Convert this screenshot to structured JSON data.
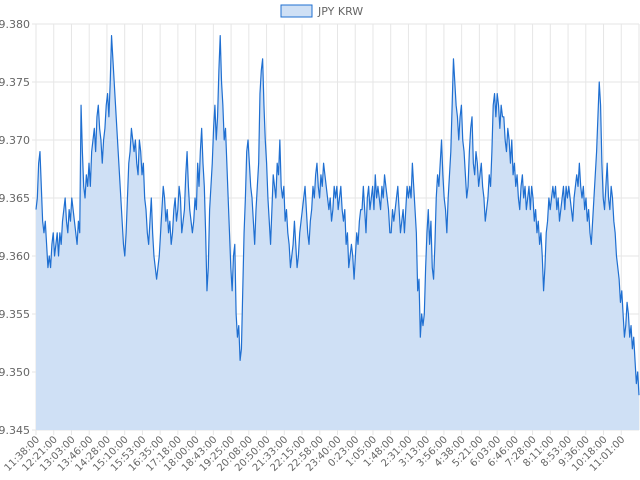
{
  "chart_data": {
    "type": "area",
    "legend": {
      "position": "top",
      "label": "JPY KRW"
    },
    "colors": {
      "line": "#1f6fd1",
      "fill": "#cfe0f5",
      "grid": "#e6e6e6",
      "text": "#666666"
    },
    "grid": true,
    "ylim": [
      9.345,
      9.38
    ],
    "y_ticks": [
      "9.345",
      "9.350",
      "9.355",
      "9.360",
      "9.365",
      "9.370",
      "9.375",
      "9.380"
    ],
    "x_ticks": [
      "11:38:00",
      "12:21:00",
      "13:03:00",
      "13:46:00",
      "14:28:00",
      "15:10:00",
      "15:53:00",
      "16:35:00",
      "17:18:00",
      "18:00:00",
      "18:43:00",
      "19:25:00",
      "20:08:00",
      "20:50:00",
      "21:33:00",
      "22:15:00",
      "22:58:00",
      "23:40:00",
      "0:23:00",
      "1:05:00",
      "1:48:00",
      "2:31:00",
      "3:13:00",
      "3:56:00",
      "4:38:00",
      "5:21:00",
      "6:03:00",
      "6:46:00",
      "7:28:00",
      "8:11:00",
      "8:53:00",
      "9:36:00",
      "10:18:00",
      "11:01:00"
    ],
    "series": [
      {
        "name": "JPY KRW",
        "x_range": [
          "11:38:00",
          "11:30:00"
        ],
        "values": [
          9.364,
          9.365,
          9.368,
          9.369,
          9.366,
          9.363,
          9.362,
          9.363,
          9.361,
          9.359,
          9.36,
          9.359,
          9.361,
          9.362,
          9.36,
          9.361,
          9.362,
          9.36,
          9.362,
          9.361,
          9.363,
          9.364,
          9.365,
          9.363,
          9.362,
          9.364,
          9.363,
          9.365,
          9.364,
          9.363,
          9.362,
          9.361,
          9.363,
          9.362,
          9.373,
          9.369,
          9.366,
          9.365,
          9.367,
          9.366,
          9.368,
          9.366,
          9.369,
          9.37,
          9.371,
          9.369,
          9.372,
          9.373,
          9.371,
          9.37,
          9.368,
          9.37,
          9.371,
          9.373,
          9.374,
          9.372,
          9.375,
          9.379,
          9.377,
          9.375,
          9.373,
          9.371,
          9.369,
          9.367,
          9.365,
          9.363,
          9.361,
          9.36,
          9.362,
          9.365,
          9.368,
          9.369,
          9.371,
          9.37,
          9.369,
          9.37,
          9.368,
          9.367,
          9.37,
          9.369,
          9.367,
          9.368,
          9.365,
          9.364,
          9.362,
          9.361,
          9.363,
          9.365,
          9.362,
          9.36,
          9.359,
          9.358,
          9.359,
          9.36,
          9.362,
          9.364,
          9.366,
          9.365,
          9.363,
          9.364,
          9.362,
          9.363,
          9.361,
          9.362,
          9.364,
          9.365,
          9.363,
          9.364,
          9.366,
          9.365,
          9.362,
          9.363,
          9.364,
          9.367,
          9.369,
          9.366,
          9.364,
          9.363,
          9.362,
          9.363,
          9.365,
          9.364,
          9.368,
          9.366,
          9.369,
          9.371,
          9.368,
          9.366,
          9.362,
          9.357,
          9.359,
          9.364,
          9.366,
          9.368,
          9.371,
          9.373,
          9.37,
          9.372,
          9.376,
          9.379,
          9.375,
          9.373,
          9.37,
          9.371,
          9.368,
          9.365,
          9.362,
          9.359,
          9.357,
          9.36,
          9.361,
          9.355,
          9.353,
          9.354,
          9.351,
          9.352,
          9.357,
          9.362,
          9.365,
          9.369,
          9.37,
          9.368,
          9.366,
          9.365,
          9.363,
          9.361,
          9.364,
          9.366,
          9.368,
          9.374,
          9.376,
          9.377,
          9.373,
          9.37,
          9.368,
          9.365,
          9.363,
          9.361,
          9.364,
          9.367,
          9.366,
          9.365,
          9.368,
          9.367,
          9.37,
          9.366,
          9.365,
          9.366,
          9.363,
          9.364,
          9.362,
          9.361,
          9.359,
          9.36,
          9.361,
          9.363,
          9.361,
          9.359,
          9.36,
          9.362,
          9.363,
          9.364,
          9.365,
          9.366,
          9.364,
          9.362,
          9.361,
          9.363,
          9.364,
          9.366,
          9.365,
          9.367,
          9.368,
          9.366,
          9.365,
          9.367,
          9.366,
          9.368,
          9.367,
          9.366,
          9.365,
          9.364,
          9.365,
          9.363,
          9.364,
          9.366,
          9.365,
          9.366,
          9.364,
          9.365,
          9.366,
          9.364,
          9.363,
          9.364,
          9.361,
          9.362,
          9.359,
          9.36,
          9.361,
          9.36,
          9.358,
          9.36,
          9.362,
          9.361,
          9.363,
          9.364,
          9.364,
          9.366,
          9.364,
          9.362,
          9.365,
          9.366,
          9.364,
          9.365,
          9.366,
          9.364,
          9.367,
          9.365,
          9.366,
          9.365,
          9.364,
          9.366,
          9.365,
          9.367,
          9.366,
          9.365,
          9.364,
          9.362,
          9.362,
          9.364,
          9.363,
          9.364,
          9.365,
          9.366,
          9.364,
          9.362,
          9.363,
          9.364,
          9.362,
          9.364,
          9.366,
          9.365,
          9.366,
          9.365,
          9.368,
          9.366,
          9.364,
          9.362,
          9.357,
          9.358,
          9.353,
          9.355,
          9.354,
          9.355,
          9.359,
          9.362,
          9.364,
          9.361,
          9.363,
          9.359,
          9.358,
          9.361,
          9.365,
          9.367,
          9.366,
          9.368,
          9.37,
          9.367,
          9.365,
          9.364,
          9.362,
          9.365,
          9.367,
          9.369,
          9.373,
          9.377,
          9.375,
          9.373,
          9.372,
          9.37,
          9.372,
          9.373,
          9.37,
          9.369,
          9.367,
          9.365,
          9.366,
          9.369,
          9.371,
          9.372,
          9.368,
          9.367,
          9.369,
          9.368,
          9.366,
          9.367,
          9.368,
          9.366,
          9.365,
          9.363,
          9.364,
          9.365,
          9.367,
          9.366,
          9.369,
          9.373,
          9.374,
          9.372,
          9.374,
          9.373,
          9.371,
          9.373,
          9.372,
          9.372,
          9.37,
          9.369,
          9.371,
          9.37,
          9.368,
          9.37,
          9.367,
          9.368,
          9.366,
          9.367,
          9.365,
          9.364,
          9.366,
          9.367,
          9.365,
          9.366,
          9.364,
          9.365,
          9.366,
          9.364,
          9.366,
          9.365,
          9.363,
          9.364,
          9.362,
          9.363,
          9.361,
          9.362,
          9.36,
          9.357,
          9.359,
          9.362,
          9.363,
          9.365,
          9.364,
          9.365,
          9.366,
          9.365,
          9.366,
          9.364,
          9.365,
          9.363,
          9.364,
          9.365,
          9.366,
          9.364,
          9.366,
          9.365,
          9.366,
          9.365,
          9.364,
          9.363,
          9.365,
          9.366,
          9.367,
          9.366,
          9.368,
          9.366,
          9.365,
          9.366,
          9.364,
          9.365,
          9.363,
          9.364,
          9.362,
          9.361,
          9.363,
          9.365,
          9.367,
          9.369,
          9.372,
          9.375,
          9.373,
          9.368,
          9.365,
          9.364,
          9.366,
          9.368,
          9.365,
          9.364,
          9.366,
          9.365,
          9.363,
          9.362,
          9.36,
          9.359,
          9.358,
          9.356,
          9.357,
          9.355,
          9.353,
          9.354,
          9.356,
          9.355,
          9.353,
          9.354,
          9.352,
          9.353,
          9.351,
          9.349,
          9.35,
          9.348
        ]
      }
    ]
  }
}
